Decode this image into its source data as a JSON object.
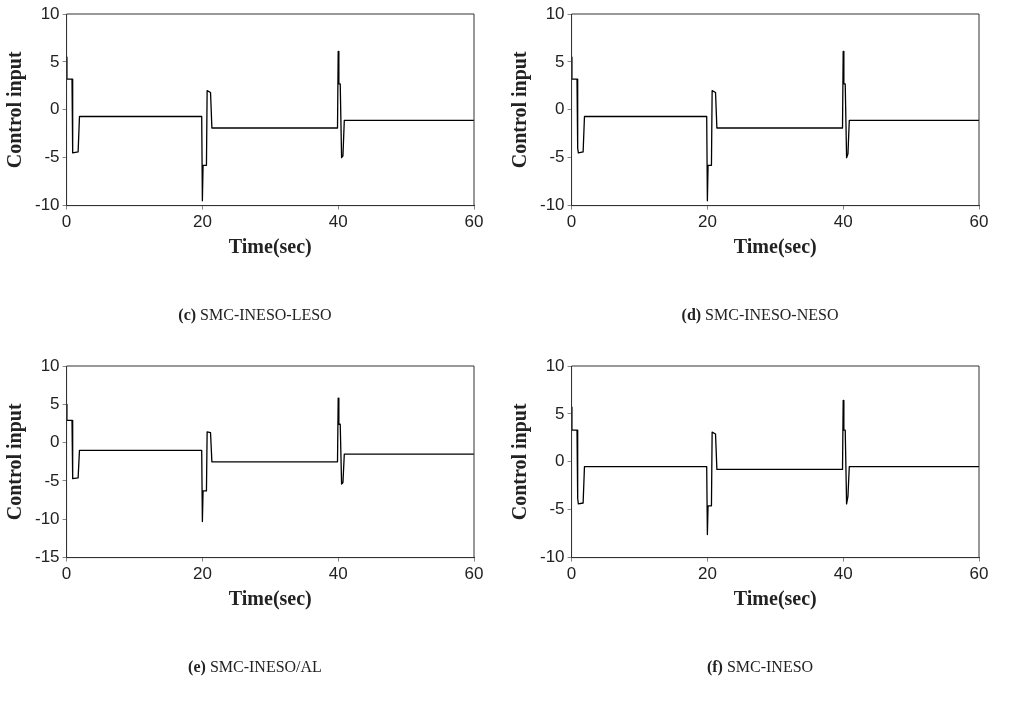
{
  "chart_data": [
    {
      "type": "line",
      "xlabel": "Time(sec)",
      "ylabel": "Control input",
      "annotations": [
        "(c) SMC-INESO-LESO"
      ],
      "xlim": [
        0,
        60
      ],
      "xticks": [
        0,
        20,
        40,
        60
      ],
      "ylim": [
        -10,
        10
      ],
      "yticks": [
        -10,
        -5,
        0,
        5,
        10
      ],
      "grid": false,
      "line_style": "solid",
      "series": [
        {
          "color": "#000000",
          "x": [
            0,
            0.05,
            0.8,
            0.9,
            1.7,
            1.9,
            19.9,
            20,
            20.1,
            20.6,
            20.7,
            21.2,
            21.4,
            39.9,
            40,
            40.1,
            40.3,
            40.5,
            40.7,
            40.9,
            60
          ],
          "values": [
            5.5,
            3.2,
            3.2,
            -4.5,
            -4.4,
            -0.7,
            -0.7,
            -9.5,
            -5.8,
            -5.8,
            2,
            1.8,
            -1.9,
            -1.9,
            6.1,
            2.7,
            2.7,
            -5,
            -4.8,
            -1.1,
            -1.1
          ]
        }
      ]
    },
    {
      "type": "line",
      "xlabel": "Time(sec)",
      "ylabel": "Control input",
      "annotations": [
        "(d) SMC-INESO-NESO"
      ],
      "xlim": [
        0,
        60
      ],
      "xticks": [
        0,
        20,
        40,
        60
      ],
      "ylim": [
        -10,
        10
      ],
      "yticks": [
        -10,
        -5,
        0,
        5,
        10
      ],
      "grid": false,
      "line_style": "solid",
      "series": [
        {
          "color": "#000000",
          "x": [
            0,
            0.05,
            0.8,
            0.9,
            1.0,
            1.7,
            1.9,
            19.9,
            20,
            20.1,
            20.6,
            20.7,
            21.2,
            21.4,
            39.9,
            40,
            40.1,
            40.3,
            40.5,
            40.7,
            40.9,
            60
          ],
          "values": [
            5.5,
            3.2,
            3.2,
            -4,
            -4.5,
            -4.4,
            -0.7,
            -0.7,
            -9.5,
            -5.8,
            -5.8,
            2,
            1.8,
            -1.9,
            -1.9,
            6.1,
            2.7,
            2.7,
            -5,
            -4.6,
            -1.1,
            -1.1
          ]
        }
      ]
    },
    {
      "type": "line",
      "xlabel": "Time(sec)",
      "ylabel": "Control input",
      "annotations": [
        "(e) SMC-INESO/AL"
      ],
      "xlim": [
        0,
        60
      ],
      "xticks": [
        0,
        20,
        40,
        60
      ],
      "ylim": [
        -15,
        10
      ],
      "yticks": [
        -15,
        -10,
        -5,
        0,
        5,
        10
      ],
      "grid": false,
      "line_style": "solid",
      "series": [
        {
          "color": "#000000",
          "x": [
            0,
            0.05,
            0.8,
            0.9,
            1.7,
            1.9,
            19.9,
            20,
            20.1,
            20.6,
            20.7,
            21.2,
            21.4,
            39.9,
            40,
            40.1,
            40.3,
            40.5,
            40.7,
            40.9,
            60
          ],
          "values": [
            5,
            2.9,
            2.9,
            -4.7,
            -4.6,
            -1,
            -1,
            -10.3,
            -6.3,
            -6.3,
            1.4,
            1.3,
            -2.5,
            -2.5,
            5.8,
            2.4,
            2.4,
            -5.4,
            -5.2,
            -1.5,
            -1.5
          ]
        }
      ]
    },
    {
      "type": "line",
      "xlabel": "Time(sec)",
      "ylabel": "Control input",
      "annotations": [
        "(f) SMC-INESO"
      ],
      "xlim": [
        0,
        60
      ],
      "xticks": [
        0,
        20,
        40,
        60
      ],
      "ylim": [
        -10,
        10
      ],
      "yticks": [
        -10,
        -5,
        0,
        5,
        10
      ],
      "grid": false,
      "line_style": "solid",
      "series": [
        {
          "color": "#000000",
          "x": [
            0,
            0.05,
            0.8,
            0.9,
            1.0,
            1.7,
            1.9,
            19.9,
            20,
            20.1,
            20.6,
            20.7,
            21.2,
            21.4,
            39.9,
            40,
            40.1,
            40.3,
            40.5,
            40.7,
            40.9,
            60
          ],
          "values": [
            5.7,
            3.3,
            3.3,
            -3.8,
            -4.4,
            -4.3,
            -0.5,
            -0.5,
            -7.6,
            -4.6,
            -4.6,
            3.1,
            2.9,
            -0.8,
            -0.8,
            6.4,
            3.3,
            3.3,
            -4.4,
            -3.6,
            -0.5,
            -0.5
          ]
        }
      ]
    }
  ]
}
